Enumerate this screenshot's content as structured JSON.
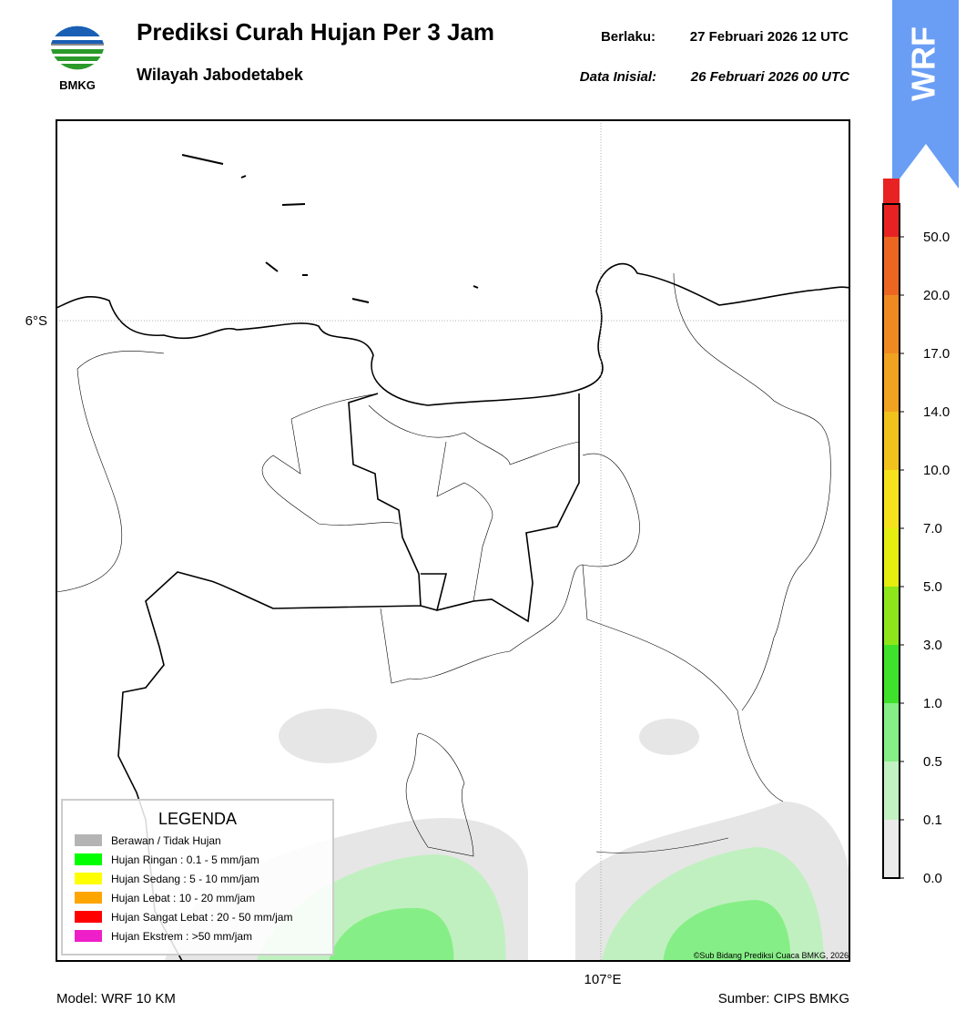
{
  "header": {
    "title": "Prediksi Curah Hujan Per 3 Jam",
    "subtitle": "Wilayah Jabodetabek",
    "valid_label": "Berlaku:",
    "valid_value": "27 Februari 2026 12 UTC",
    "init_label": "Data Inisial:",
    "init_value": "26 Februari 2026 00 UTC",
    "logo_text": "BMKG",
    "badge": "WRF"
  },
  "map": {
    "lat_label": "6°S",
    "lon_label": "107°E",
    "credit": "©Sub Bidang Prediksi Cuaca BMKG, 2026"
  },
  "legend": {
    "title": "LEGENDA",
    "items": [
      {
        "label": "Berawan / Tidak Hujan",
        "color": "#b4b4b4"
      },
      {
        "label": "Hujan Ringan : 0.1 - 5 mm/jam",
        "color": "#00ff00"
      },
      {
        "label": "Hujan Sedang : 5 - 10 mm/jam",
        "color": "#ffff00"
      },
      {
        "label": "Hujan Lebat : 10 - 20 mm/jam",
        "color": "#ffa500"
      },
      {
        "label": "Hujan Sangat Lebat : 20 - 50 mm/jam",
        "color": "#ff0000"
      },
      {
        "label": "Hujan Ekstrem : >50 mm/jam",
        "color": "#ee1fc8"
      }
    ]
  },
  "colorbar": {
    "ticks": [
      "0.0",
      "0.1",
      "0.5",
      "1.0",
      "3.0",
      "5.0",
      "7.0",
      "10.0",
      "14.0",
      "17.0",
      "20.0",
      "50.0"
    ],
    "colors": [
      "#eaeaea",
      "#c2f2c2",
      "#86ee86",
      "#3fe22a",
      "#8ee61a",
      "#e6ee10",
      "#f5e21c",
      "#f1c21c",
      "#f0a221",
      "#ef8a22",
      "#ec6622",
      "#e82222",
      "#e81fc2"
    ]
  },
  "footer": {
    "model": "Model: WRF 10 KM",
    "source": "Sumber: CIPS BMKG"
  }
}
